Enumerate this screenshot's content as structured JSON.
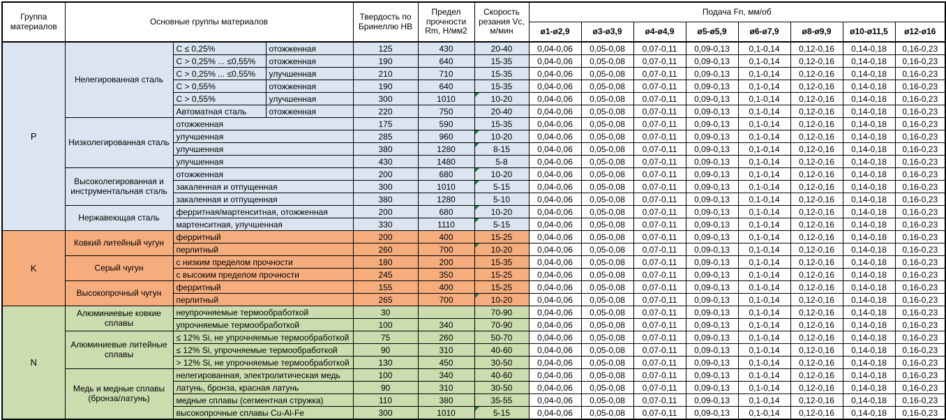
{
  "colors": {
    "group_p": "#dbe5f1",
    "group_k": "#f5ad7e",
    "group_n": "#cbdcae",
    "comment_flag": "#217346",
    "border": "#000000"
  },
  "table": {
    "headers": {
      "group": "Группа материалов",
      "material_groups": "Основные группы материалов",
      "hardness": "Твердость по Бринеллю HB",
      "strength": "Предел прочности Rm, Н/мм2",
      "speed": "Скорость резания Vc, м/мин",
      "feed": "Подача Fn, мм/об",
      "diameters": [
        "ø1-ø2,9",
        "ø3-ø3,9",
        "ø4-ø4,9",
        "ø5-ø5,9",
        "ø6-ø7,9",
        "ø8-ø9,9",
        "ø10-ø11,5",
        "ø12-ø16"
      ]
    },
    "feed_values": [
      "0,04-0,06",
      "0,05-0,08",
      "0,07-0,11",
      "0,09-0,13",
      "0,1-0,14",
      "0,12-0,16",
      "0,14-0,18",
      "0,16-0,23"
    ],
    "groups": [
      {
        "letter": "P",
        "color": "#dbe5f1",
        "subgroups": [
          {
            "name": "Нелегированная сталь",
            "rows": [
              {
                "d": [
                  "C ≤ 0,25%",
                  "отожженная"
                ],
                "hb": "125",
                "rm": "430",
                "vc": "20-40",
                "f": false
              },
              {
                "d": [
                  "C > 0,25% ... ≤0,55%",
                  "отожженная"
                ],
                "hb": "190",
                "rm": "640",
                "vc": "15-35",
                "f": false
              },
              {
                "d": [
                  "C > 0,25% ... ≤0,55%",
                  "улучшенная"
                ],
                "hb": "210",
                "rm": "710",
                "vc": "15-35",
                "f": false
              },
              {
                "d": [
                  "C > 0,55%",
                  "отожженная"
                ],
                "hb": "190",
                "rm": "640",
                "vc": "15-35",
                "f": false
              },
              {
                "d": [
                  "C > 0,55%",
                  "улучшенная"
                ],
                "hb": "300",
                "rm": "1010",
                "vc": "10-20",
                "f": true
              },
              {
                "d": [
                  "Автоматная сталь",
                  "отожженная"
                ],
                "hb": "220",
                "rm": "750",
                "vc": "20-40",
                "f": false
              }
            ]
          },
          {
            "name": "Низколегированная сталь",
            "rows": [
              {
                "d": [
                  "отожженная"
                ],
                "hb": "175",
                "rm": "590",
                "vc": "15-35",
                "f": false
              },
              {
                "d": [
                  "улучшенная"
                ],
                "hb": "285",
                "rm": "960",
                "vc": "10-20",
                "f": true
              },
              {
                "d": [
                  "улучшенная"
                ],
                "hb": "380",
                "rm": "1280",
                "vc": "8-15",
                "f": true
              },
              {
                "d": [
                  "улучшенная"
                ],
                "hb": "430",
                "rm": "1480",
                "vc": "5-8",
                "f": false
              }
            ]
          },
          {
            "name": "Высоколегированная и инструментальная сталь",
            "rows": [
              {
                "d": [
                  "отожженная"
                ],
                "hb": "200",
                "rm": "680",
                "vc": "10-20",
                "f": true
              },
              {
                "d": [
                  "закаленная и отпущенная"
                ],
                "hb": "300",
                "rm": "1010",
                "vc": "5-15",
                "f": true
              },
              {
                "d": [
                  "закаленная и отпущенная"
                ],
                "hb": "380",
                "rm": "1280",
                "vc": "5-10",
                "f": false
              }
            ]
          },
          {
            "name": "Нержавеющая сталь",
            "rows": [
              {
                "d": [
                  "ферритная/мартенситная, отожженная"
                ],
                "hb": "200",
                "rm": "680",
                "vc": "10-20",
                "f": true
              },
              {
                "d": [
                  "мартенситная, улучшенная"
                ],
                "hb": "330",
                "rm": "1110",
                "vc": "5-15",
                "f": true
              }
            ]
          }
        ]
      },
      {
        "letter": "K",
        "color": "#f5ad7e",
        "subgroups": [
          {
            "name": "Ковкий литейный чугун",
            "rows": [
              {
                "d": [
                  "ферритный"
                ],
                "hb": "200",
                "rm": "400",
                "vc": "15-25",
                "f": false
              },
              {
                "d": [
                  "перлитный"
                ],
                "hb": "260",
                "rm": "700",
                "vc": "10-20",
                "f": true
              }
            ]
          },
          {
            "name": "Серый чугун",
            "rows": [
              {
                "d": [
                  "с низким пределом прочности"
                ],
                "hb": "180",
                "rm": "200",
                "vc": "15-35",
                "f": false
              },
              {
                "d": [
                  "с высоким пределом прочности"
                ],
                "hb": "245",
                "rm": "350",
                "vc": "15-25",
                "f": false
              }
            ]
          },
          {
            "name": "Высокопрочный чугун",
            "rows": [
              {
                "d": [
                  "ферритный"
                ],
                "hb": "155",
                "rm": "400",
                "vc": "15-25",
                "f": false
              },
              {
                "d": [
                  "перлитный"
                ],
                "hb": "265",
                "rm": "700",
                "vc": "10-20",
                "f": true
              }
            ]
          }
        ]
      },
      {
        "letter": "N",
        "color": "#cbdcae",
        "subgroups": [
          {
            "name": "Алюминиевые ковкие сплавы",
            "rows": [
              {
                "d": [
                  "неупрочняемые термообработкой"
                ],
                "hb": "30",
                "rm": "",
                "vc": "70-90",
                "f": false
              },
              {
                "d": [
                  "упрочняемые термообработкой"
                ],
                "hb": "100",
                "rm": "340",
                "vc": "70-90",
                "f": false
              }
            ]
          },
          {
            "name": "Алюминиевые литейные сплавы",
            "rows": [
              {
                "d": [
                  "≤ 12% Si, не упрочняемые термообработкой"
                ],
                "hb": "75",
                "rm": "260",
                "vc": "50-70",
                "f": false
              },
              {
                "d": [
                  "≤ 12% Si, упрочняемые термообработкой"
                ],
                "hb": "90",
                "rm": "310",
                "vc": "40-60",
                "f": false
              },
              {
                "d": [
                  "> 12% Si, не упрочняемые термообработкой"
                ],
                "hb": "130",
                "rm": "450",
                "vc": "30-50",
                "f": false
              }
            ]
          },
          {
            "name": "Медь и медные сплавы (бронза/латунь)",
            "rows": [
              {
                "d": [
                  "нелегированная, электролитическая медь"
                ],
                "hb": "100",
                "rm": "340",
                "vc": "40-60",
                "f": false
              },
              {
                "d": [
                  "латунь, бронза, красная латунь"
                ],
                "hb": "90",
                "rm": "310",
                "vc": "30-50",
                "f": false
              },
              {
                "d": [
                  "медные сплавы (сегментная стружка)"
                ],
                "hb": "110",
                "rm": "380",
                "vc": "35-55",
                "f": false
              },
              {
                "d": [
                  "высокопрочные сплавы Cu-Al-Fe"
                ],
                "hb": "300",
                "rm": "1010",
                "vc": "5-15",
                "f": true
              }
            ]
          }
        ]
      }
    ]
  }
}
